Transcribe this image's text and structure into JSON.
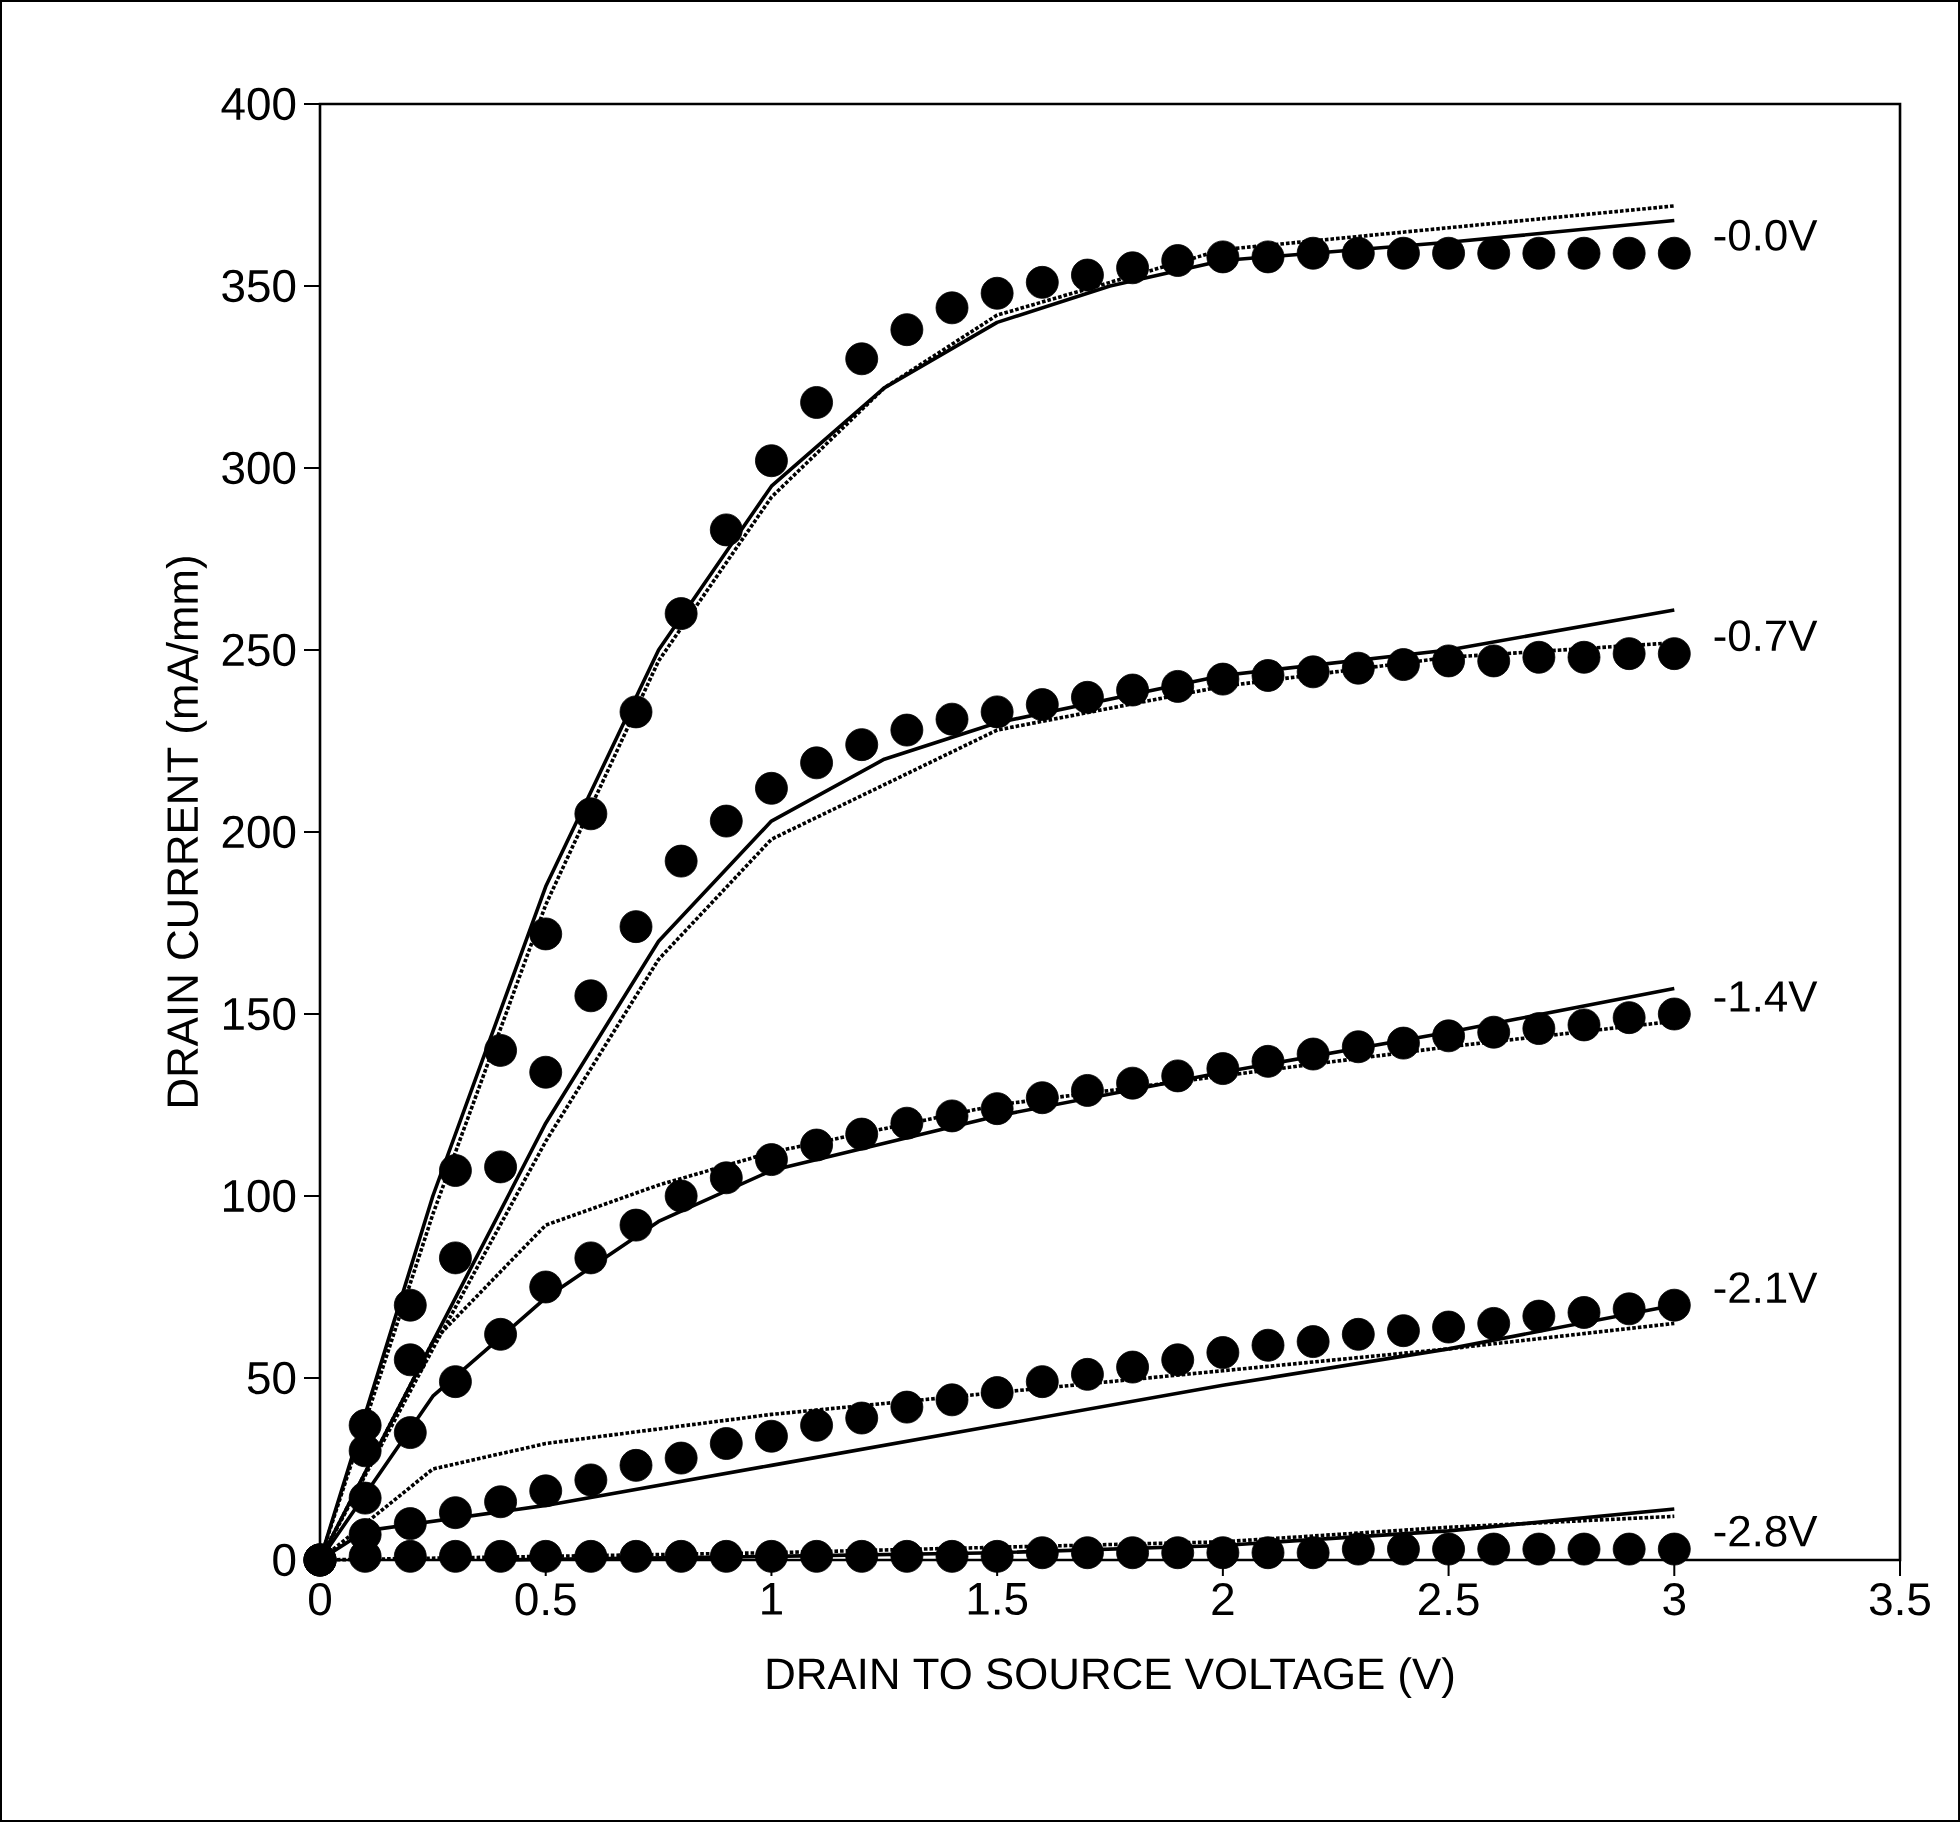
{
  "chart_data": {
    "type": "scatter",
    "xlabel": "DRAIN TO SOURCE VOLTAGE (V)",
    "ylabel": "DRAIN CURRENT (mA/mm)",
    "xlim": [
      0,
      3.5
    ],
    "ylim": [
      0,
      400
    ],
    "xticks": [
      0,
      0.5,
      1,
      1.5,
      2,
      2.5,
      3,
      3.5
    ],
    "yticks": [
      0,
      50,
      100,
      150,
      200,
      250,
      300,
      350,
      400
    ],
    "x": [
      0,
      0.1,
      0.2,
      0.3,
      0.4,
      0.5,
      0.6,
      0.7,
      0.8,
      0.9,
      1.0,
      1.1,
      1.2,
      1.3,
      1.4,
      1.5,
      1.6,
      1.7,
      1.8,
      1.9,
      2.0,
      2.1,
      2.2,
      2.3,
      2.4,
      2.5,
      2.6,
      2.7,
      2.8,
      2.9,
      3.0
    ],
    "marker": "circle",
    "grid": false,
    "series": [
      {
        "name": "-0.0V",
        "color": "#000000",
        "values": [
          0,
          37,
          70,
          107,
          140,
          172,
          205,
          233,
          260,
          283,
          302,
          318,
          330,
          338,
          344,
          348,
          351,
          353,
          355,
          357,
          358,
          358,
          359,
          359,
          359,
          359,
          359,
          359,
          359,
          359,
          359
        ]
      },
      {
        "name": "-0.7V",
        "color": "#000000",
        "values": [
          0,
          30,
          55,
          83,
          108,
          134,
          155,
          174,
          192,
          203,
          212,
          219,
          224,
          228,
          231,
          233,
          235,
          237,
          239,
          240,
          242,
          243,
          244,
          245,
          246,
          247,
          247,
          248,
          248,
          249,
          249
        ]
      },
      {
        "name": "-1.4V",
        "color": "#000000",
        "values": [
          0,
          17,
          35,
          49,
          62,
          75,
          83,
          92,
          100,
          105,
          110,
          114,
          117,
          120,
          122,
          124,
          127,
          129,
          131,
          133,
          135,
          137,
          139,
          141,
          142,
          144,
          145,
          146,
          147,
          149,
          150
        ]
      },
      {
        "name": "-2.1V",
        "color": "#000000",
        "values": [
          0,
          7,
          10,
          13,
          16,
          19,
          22,
          26,
          28,
          32,
          34,
          37,
          39,
          42,
          44,
          46,
          49,
          51,
          53,
          55,
          57,
          59,
          60,
          62,
          63,
          64,
          65,
          67,
          68,
          69,
          70
        ]
      },
      {
        "name": "-2.8V",
        "color": "#000000",
        "values": [
          0,
          1,
          1,
          1,
          1,
          1,
          1,
          1,
          1,
          1,
          1,
          1,
          1,
          1,
          1,
          1,
          2,
          2,
          2,
          2,
          2,
          2,
          2,
          3,
          3,
          3,
          3,
          3,
          3,
          3,
          3
        ]
      },
      {
        "type": "line",
        "line_style": "solid",
        "marker": "none",
        "color": "#000000",
        "x": [
          0,
          0.25,
          0.5,
          0.75,
          1,
          1.25,
          1.5,
          1.75,
          2,
          2.5,
          3
        ],
        "values": [
          0,
          100,
          185,
          250,
          295,
          322,
          340,
          350,
          357,
          362,
          368
        ]
      },
      {
        "type": "line",
        "line_style": "dotted",
        "marker": "none",
        "color": "#000000",
        "x": [
          0,
          0.25,
          0.5,
          0.75,
          1,
          1.25,
          1.5,
          2,
          2.5,
          3
        ],
        "values": [
          0,
          95,
          180,
          247,
          292,
          322,
          342,
          360,
          366,
          372
        ]
      },
      {
        "type": "line",
        "line_style": "solid",
        "marker": "none",
        "color": "#000000",
        "x": [
          0,
          0.25,
          0.5,
          0.75,
          1,
          1.25,
          1.5,
          2,
          2.5,
          3
        ],
        "values": [
          0,
          60,
          120,
          170,
          203,
          220,
          230,
          243,
          250,
          261
        ]
      },
      {
        "type": "line",
        "line_style": "dotted",
        "marker": "none",
        "color": "#000000",
        "x": [
          0,
          0.25,
          0.5,
          0.75,
          1,
          1.5,
          2,
          2.5,
          3
        ],
        "values": [
          0,
          58,
          115,
          165,
          198,
          228,
          240,
          248,
          252
        ]
      },
      {
        "type": "line",
        "line_style": "solid",
        "marker": "none",
        "color": "#000000",
        "x": [
          0,
          0.25,
          0.5,
          0.75,
          1,
          1.5,
          2,
          2.5,
          3
        ],
        "values": [
          0,
          45,
          72,
          93,
          107,
          122,
          134,
          145,
          157
        ]
      },
      {
        "type": "line",
        "line_style": "dotted",
        "marker": "none",
        "color": "#000000",
        "x": [
          0,
          0.25,
          0.5,
          0.75,
          1,
          1.5,
          2,
          2.5,
          3
        ],
        "values": [
          0,
          60,
          92,
          103,
          112,
          125,
          133,
          141,
          148
        ]
      },
      {
        "type": "line",
        "line_style": "solid",
        "marker": "none",
        "color": "#000000",
        "x": [
          0,
          0.1,
          0.5,
          1,
          1.5,
          2,
          2.5,
          3
        ],
        "values": [
          0,
          8,
          15,
          26,
          37,
          48,
          58,
          70
        ]
      },
      {
        "type": "line",
        "line_style": "dotted",
        "marker": "none",
        "color": "#000000",
        "x": [
          0,
          0.25,
          0.5,
          1,
          1.5,
          2,
          2.5,
          3
        ],
        "values": [
          0,
          25,
          32,
          40,
          46,
          52,
          58,
          65
        ]
      },
      {
        "type": "line",
        "line_style": "solid",
        "marker": "none",
        "color": "#000000",
        "x": [
          0.4,
          1,
          1.5,
          2,
          2.5,
          3
        ],
        "values": [
          0,
          1,
          2,
          4,
          8,
          14
        ]
      },
      {
        "type": "line",
        "line_style": "dotted",
        "marker": "none",
        "color": "#000000",
        "x": [
          0,
          1,
          2,
          2.5,
          3
        ],
        "values": [
          0,
          2,
          5,
          9,
          12
        ]
      }
    ]
  }
}
